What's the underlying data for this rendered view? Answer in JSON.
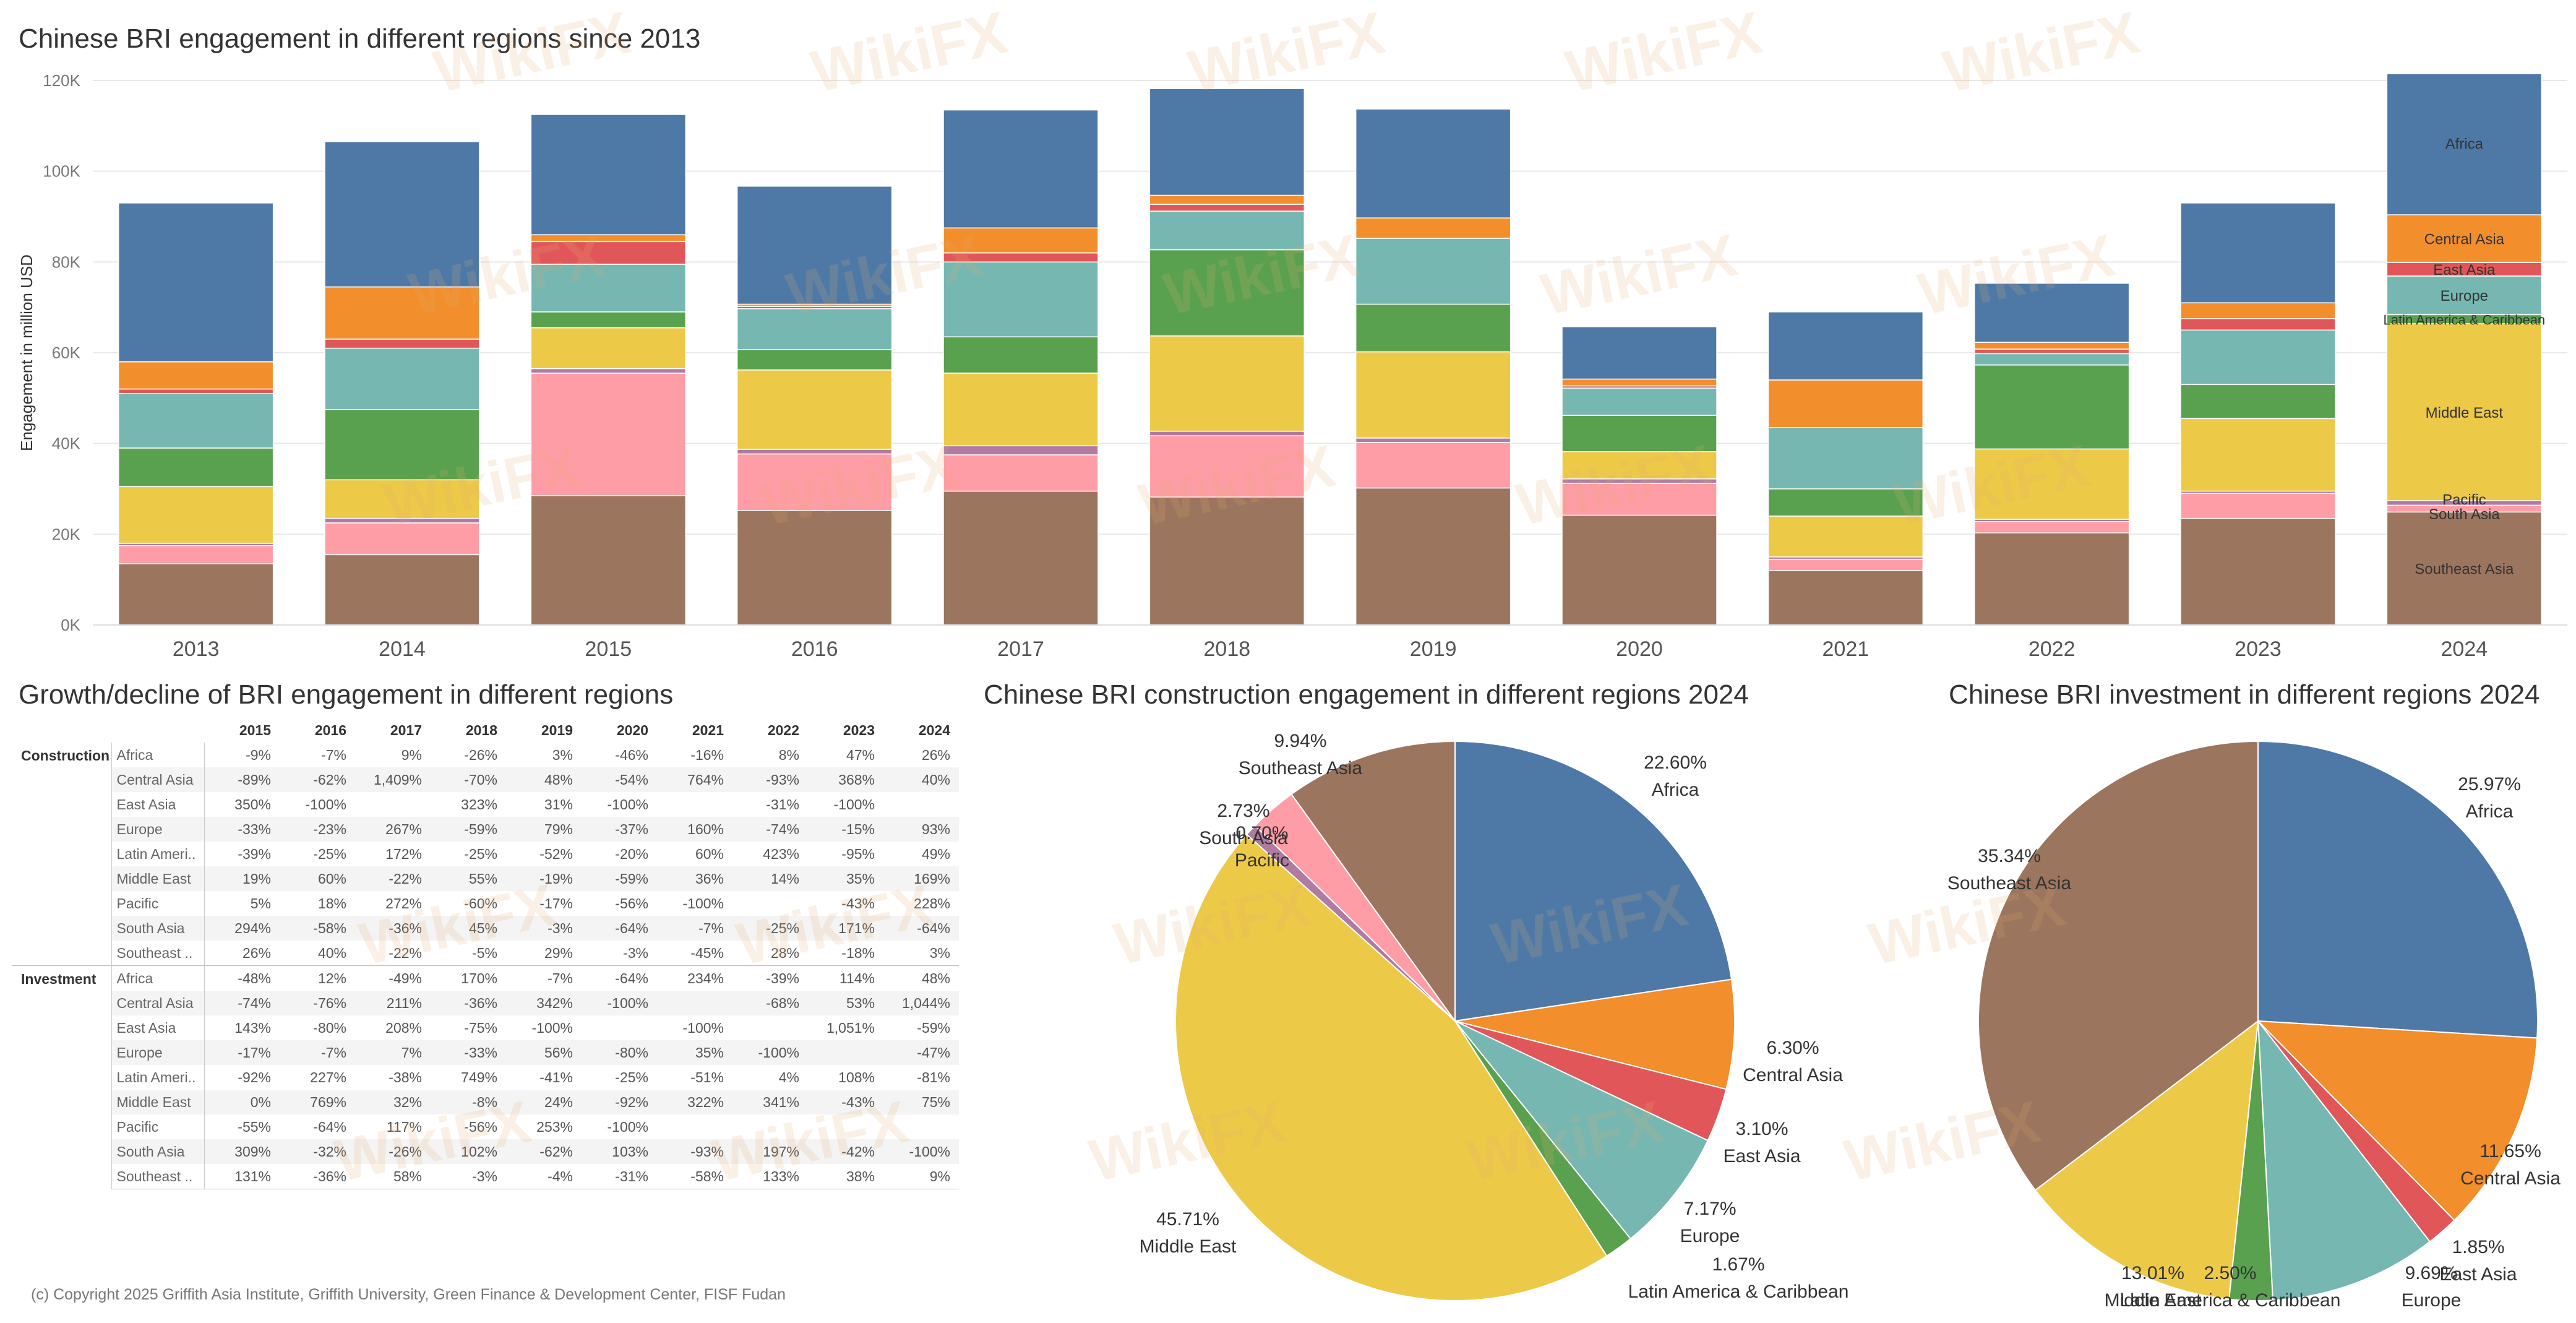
{
  "titles": {
    "bar": "Chinese BRI engagement in different regions since 2013",
    "table": "Growth/decline of BRI engagement in different regions",
    "pie_construction": "Chinese BRI construction engagement in different regions 2024",
    "pie_investment": "Chinese BRI investment in different regions 2024"
  },
  "copyright": "(c) Copyright 2025 Griffith Asia Institute, Griffith University, Green Finance & Development Center, FISF Fudan",
  "watermark": "WikiFX",
  "colors": {
    "Africa": "#4e79a7",
    "Central Asia": "#f28e2b",
    "East Asia": "#e15759",
    "Europe": "#76b7b2",
    "Latin America & Caribbean": "#59a14f",
    "Middle East": "#edc948",
    "Pacific": "#b07aa1",
    "South Asia": "#ff9da7",
    "Southeast Asia": "#9c755f"
  },
  "chart_data": [
    {
      "type": "bar",
      "stacked": true,
      "title": "Chinese BRI engagement in different regions since 2013",
      "xlabel": "",
      "ylabel": "Engagement in million USD",
      "ylim": [
        0,
        120000
      ],
      "yticks": [
        0,
        20000,
        40000,
        60000,
        80000,
        100000,
        120000
      ],
      "yticklabels": [
        "0K",
        "20K",
        "40K",
        "60K",
        "80K",
        "100K",
        "120K"
      ],
      "categories": [
        "2013",
        "2014",
        "2015",
        "2016",
        "2017",
        "2018",
        "2019",
        "2020",
        "2021",
        "2022",
        "2023",
        "2024"
      ],
      "series": [
        {
          "name": "Southeast Asia",
          "values": [
            13500,
            15500,
            28500,
            25200,
            29500,
            28200,
            30200,
            24200,
            12000,
            20300,
            23500,
            24900
          ]
        },
        {
          "name": "South Asia",
          "values": [
            4000,
            7000,
            27000,
            12500,
            8000,
            13500,
            10000,
            7000,
            2500,
            2500,
            5500,
            1500
          ]
        },
        {
          "name": "Pacific",
          "values": [
            500,
            1000,
            1000,
            1000,
            2000,
            1000,
            1000,
            1000,
            500,
            500,
            500,
            1000
          ]
        },
        {
          "name": "Middle East",
          "values": [
            12500,
            8500,
            9000,
            17500,
            16000,
            21000,
            19000,
            6000,
            9000,
            15500,
            16000,
            39000
          ]
        },
        {
          "name": "Latin America & Caribbean",
          "values": [
            8500,
            15500,
            3500,
            4500,
            8000,
            19000,
            10500,
            8000,
            6000,
            18500,
            7500,
            2000
          ]
        },
        {
          "name": "Europe",
          "values": [
            12000,
            13500,
            10500,
            9000,
            16500,
            8500,
            14500,
            6000,
            13500,
            2500,
            12000,
            8500
          ]
        },
        {
          "name": "East Asia",
          "values": [
            1000,
            2000,
            5000,
            500,
            2000,
            1500,
            0,
            500,
            0,
            1000,
            2500,
            3000
          ]
        },
        {
          "name": "Central Asia",
          "values": [
            6000,
            11500,
            1500,
            500,
            5500,
            2000,
            4500,
            1500,
            10500,
            1500,
            3500,
            10500
          ]
        },
        {
          "name": "Africa",
          "values": [
            35000,
            32000,
            26500,
            26000,
            26000,
            23500,
            24000,
            11500,
            15000,
            13000,
            22000,
            31500
          ]
        }
      ],
      "annotations_2024": [
        "Africa",
        "Central Asia",
        "East Asia",
        "Europe",
        "Latin America & Caribbean",
        "Middle East",
        "Pacific",
        "South Asia",
        "Southeast Asia"
      ]
    },
    {
      "type": "pie",
      "title": "Chinese BRI construction engagement in different regions 2024",
      "labels": [
        "Africa",
        "Central Asia",
        "East Asia",
        "Europe",
        "Latin America & Caribbean",
        "Middle East",
        "Pacific",
        "South Asia",
        "Southeast Asia"
      ],
      "values": [
        22.6,
        6.3,
        3.1,
        7.17,
        1.67,
        45.71,
        0.7,
        2.73,
        9.94
      ],
      "value_labels": [
        "22.60%",
        "6.30%",
        "3.10%",
        "7.17%",
        "1.67%",
        "45.71%",
        "0.70%",
        "2.73%",
        "9.94%"
      ]
    },
    {
      "type": "pie",
      "title": "Chinese BRI investment in different regions 2024",
      "labels": [
        "Africa",
        "Central Asia",
        "East Asia",
        "Europe",
        "Latin America & Caribbean",
        "Middle East",
        "Southeast Asia"
      ],
      "values": [
        25.97,
        11.65,
        1.85,
        9.69,
        2.5,
        13.01,
        35.34
      ],
      "value_labels": [
        "25.97%",
        "11.65%",
        "1.85%",
        "9.69%",
        "2.50%",
        "13.01%",
        "35.34%"
      ]
    },
    {
      "type": "table",
      "title": "Growth/decline of BRI engagement in different regions",
      "years": [
        "2015",
        "2016",
        "2017",
        "2018",
        "2019",
        "2020",
        "2021",
        "2022",
        "2023",
        "2024"
      ],
      "groups": [
        {
          "name": "Construction",
          "rows": [
            {
              "region": "Africa",
              "values": [
                "-9%",
                "-7%",
                "9%",
                "-26%",
                "3%",
                "-46%",
                "-16%",
                "8%",
                "47%",
                "26%"
              ]
            },
            {
              "region": "Central Asia",
              "values": [
                "-89%",
                "-62%",
                "1,409%",
                "-70%",
                "48%",
                "-54%",
                "764%",
                "-93%",
                "368%",
                "40%"
              ]
            },
            {
              "region": "East Asia",
              "values": [
                "350%",
                "-100%",
                "",
                "323%",
                "31%",
                "-100%",
                "",
                "-31%",
                "-100%",
                ""
              ]
            },
            {
              "region": "Europe",
              "values": [
                "-33%",
                "-23%",
                "267%",
                "-59%",
                "79%",
                "-37%",
                "160%",
                "-74%",
                "-15%",
                "93%"
              ]
            },
            {
              "region": "Latin Ameri..",
              "values": [
                "-39%",
                "-25%",
                "172%",
                "-25%",
                "-52%",
                "-20%",
                "60%",
                "423%",
                "-95%",
                "49%"
              ]
            },
            {
              "region": "Middle East",
              "values": [
                "19%",
                "60%",
                "-22%",
                "55%",
                "-19%",
                "-59%",
                "36%",
                "14%",
                "35%",
                "169%"
              ]
            },
            {
              "region": "Pacific",
              "values": [
                "5%",
                "18%",
                "272%",
                "-60%",
                "-17%",
                "-56%",
                "-100%",
                "",
                "-43%",
                "228%"
              ]
            },
            {
              "region": "South Asia",
              "values": [
                "294%",
                "-58%",
                "-36%",
                "45%",
                "-3%",
                "-64%",
                "-7%",
                "-25%",
                "171%",
                "-64%"
              ]
            },
            {
              "region": "Southeast ..",
              "values": [
                "26%",
                "40%",
                "-22%",
                "-5%",
                "29%",
                "-3%",
                "-45%",
                "28%",
                "-18%",
                "3%"
              ]
            }
          ]
        },
        {
          "name": "Investment",
          "rows": [
            {
              "region": "Africa",
              "values": [
                "-48%",
                "12%",
                "-49%",
                "170%",
                "-7%",
                "-64%",
                "234%",
                "-39%",
                "114%",
                "48%"
              ]
            },
            {
              "region": "Central Asia",
              "values": [
                "-74%",
                "-76%",
                "211%",
                "-36%",
                "342%",
                "-100%",
                "",
                "-68%",
                "53%",
                "1,044%"
              ]
            },
            {
              "region": "East Asia",
              "values": [
                "143%",
                "-80%",
                "208%",
                "-75%",
                "-100%",
                "",
                "-100%",
                "",
                "1,051%",
                "-59%"
              ]
            },
            {
              "region": "Europe",
              "values": [
                "-17%",
                "-7%",
                "7%",
                "-33%",
                "56%",
                "-80%",
                "35%",
                "-100%",
                "",
                "-47%"
              ]
            },
            {
              "region": "Latin Ameri..",
              "values": [
                "-92%",
                "227%",
                "-38%",
                "749%",
                "-41%",
                "-25%",
                "-51%",
                "4%",
                "108%",
                "-81%"
              ]
            },
            {
              "region": "Middle East",
              "values": [
                "0%",
                "769%",
                "32%",
                "-8%",
                "24%",
                "-92%",
                "322%",
                "341%",
                "-43%",
                "75%"
              ]
            },
            {
              "region": "Pacific",
              "values": [
                "-55%",
                "-64%",
                "117%",
                "-56%",
                "253%",
                "-100%",
                "",
                "",
                "",
                ""
              ]
            },
            {
              "region": "South Asia",
              "values": [
                "309%",
                "-32%",
                "-26%",
                "102%",
                "-62%",
                "103%",
                "-93%",
                "197%",
                "-42%",
                "-100%"
              ]
            },
            {
              "region": "Southeast ..",
              "values": [
                "131%",
                "-36%",
                "58%",
                "-3%",
                "-4%",
                "-31%",
                "-58%",
                "133%",
                "38%",
                "9%"
              ]
            }
          ]
        }
      ]
    }
  ]
}
